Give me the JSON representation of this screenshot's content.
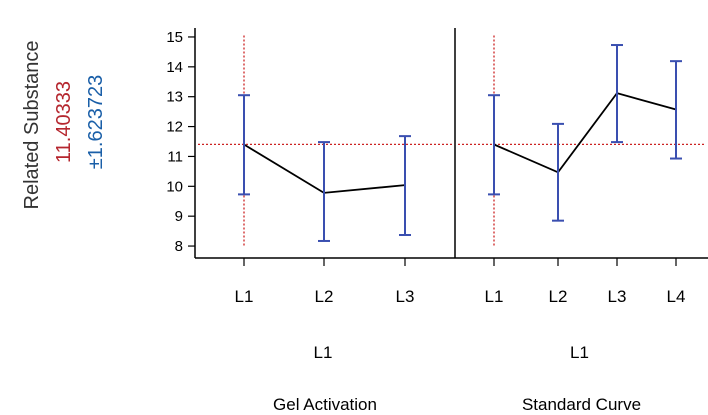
{
  "colors": {
    "response_line": "#000000",
    "error_bar": "#3a4fb0",
    "reference_line": "#cc2222",
    "predicted_value": "#b5262e",
    "interval_text": "#1a5fa8"
  },
  "chart_data": {
    "type": "line",
    "ylabel": "Related Substance",
    "predicted_value": "11.40333",
    "interval": "±1.623723",
    "reference_y": 11.40333,
    "ylim": [
      7.6,
      15.3
    ],
    "yticks": [
      8,
      9,
      10,
      11,
      12,
      13,
      14,
      15
    ],
    "panels": [
      {
        "factor": "Gel Activation",
        "current_level": "L1",
        "categories": [
          "L1",
          "L2",
          "L3"
        ],
        "values": [
          11.4,
          9.78,
          10.04
        ],
        "lower": [
          9.73,
          8.17,
          8.37
        ],
        "upper": [
          13.05,
          11.48,
          11.68
        ]
      },
      {
        "factor": "Standard Curve",
        "current_level": "L1",
        "categories": [
          "L1",
          "L2",
          "L3",
          "L4"
        ],
        "values": [
          11.4,
          10.47,
          13.12,
          12.57
        ],
        "lower": [
          9.73,
          8.85,
          11.48,
          10.93
        ],
        "upper": [
          13.05,
          12.09,
          14.73,
          14.19
        ]
      }
    ]
  }
}
